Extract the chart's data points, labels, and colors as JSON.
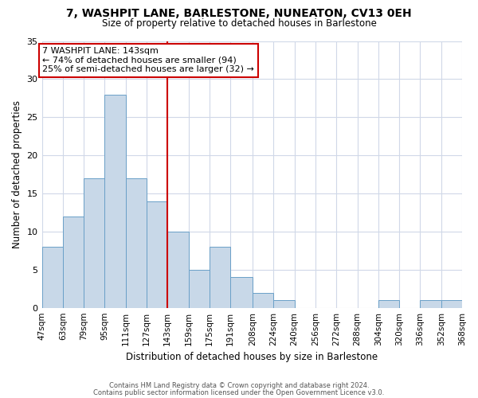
{
  "title": "7, WASHPIT LANE, BARLESTONE, NUNEATON, CV13 0EH",
  "subtitle": "Size of property relative to detached houses in Barlestone",
  "xlabel": "Distribution of detached houses by size in Barlestone",
  "ylabel": "Number of detached properties",
  "bar_edges": [
    47,
    63,
    79,
    95,
    111,
    127,
    143,
    159,
    175,
    191,
    208,
    224,
    240,
    256,
    272,
    288,
    304,
    320,
    336,
    352,
    368
  ],
  "bar_heights": [
    8,
    12,
    17,
    28,
    17,
    14,
    10,
    5,
    8,
    4,
    2,
    1,
    0,
    0,
    0,
    0,
    1,
    0,
    1,
    1
  ],
  "bar_color": "#c8d8e8",
  "bar_edgecolor": "#6aa0c8",
  "vline_x": 143,
  "vline_color": "#cc0000",
  "ylim": [
    0,
    35
  ],
  "annotation_title": "7 WASHPIT LANE: 143sqm",
  "annotation_line1": "← 74% of detached houses are smaller (94)",
  "annotation_line2": "25% of semi-detached houses are larger (32) →",
  "annotation_box_edgecolor": "#cc0000",
  "tick_labels": [
    "47sqm",
    "63sqm",
    "79sqm",
    "95sqm",
    "111sqm",
    "127sqm",
    "143sqm",
    "159sqm",
    "175sqm",
    "191sqm",
    "208sqm",
    "224sqm",
    "240sqm",
    "256sqm",
    "272sqm",
    "288sqm",
    "304sqm",
    "320sqm",
    "336sqm",
    "352sqm",
    "368sqm"
  ],
  "footnote1": "Contains HM Land Registry data © Crown copyright and database right 2024.",
  "footnote2": "Contains public sector information licensed under the Open Government Licence v3.0.",
  "bg_color": "#ffffff",
  "grid_color": "#d0d8e8"
}
